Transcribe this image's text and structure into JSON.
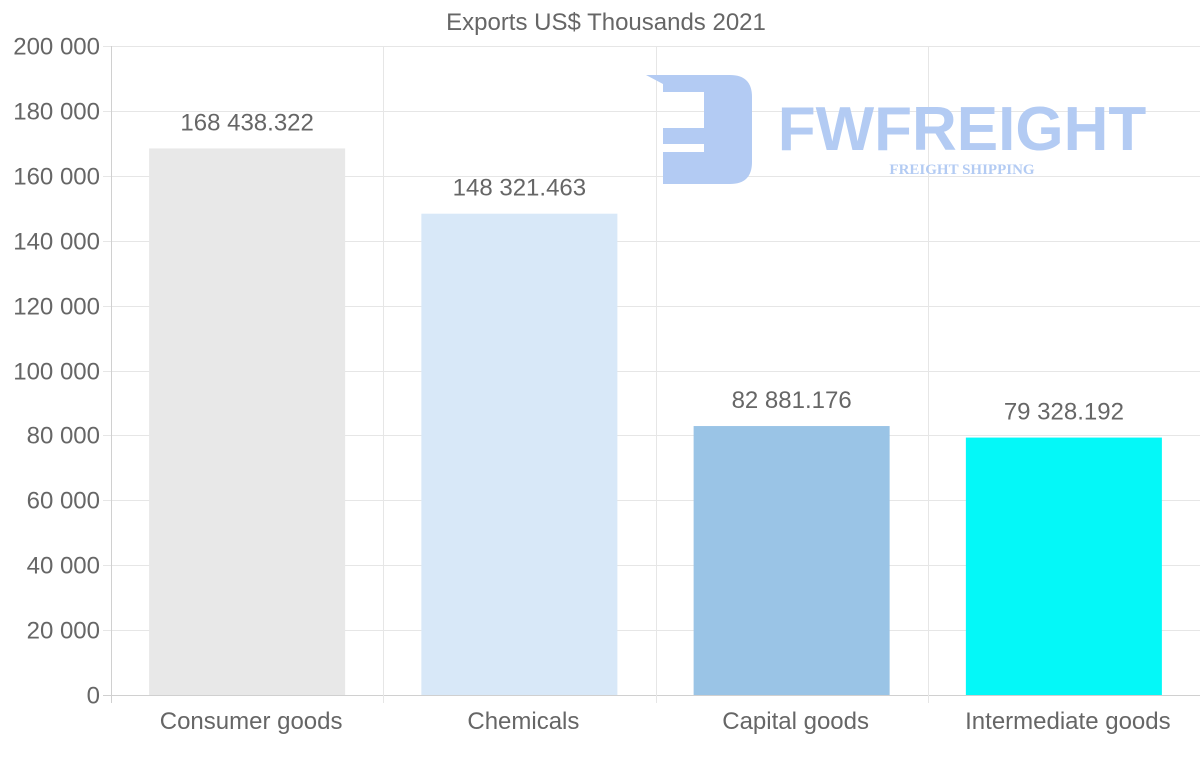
{
  "chart_data": {
    "type": "bar",
    "title": "Exports US$ Thousands 2021",
    "categories": [
      "Consumer goods",
      "Chemicals",
      "Capital goods",
      "Intermediate goods"
    ],
    "values": [
      168438.322,
      148321.463,
      82881.176,
      79328.192
    ],
    "value_labels": [
      "168 438.322",
      "148 321.463",
      "82 881.176",
      "79 328.192"
    ],
    "colors": [
      "#e8e8e8",
      "#d8e8f8",
      "#9ac4e6",
      "#04f8f8"
    ],
    "ylim": [
      0,
      200000
    ],
    "yticks": [
      0,
      20000,
      40000,
      60000,
      80000,
      100000,
      120000,
      140000,
      160000,
      180000,
      200000
    ],
    "ytick_labels": [
      "0",
      "20 000",
      "40 000",
      "60 000",
      "80 000",
      "100 000",
      "120 000",
      "140 000",
      "160 000",
      "180 000",
      "200 000"
    ],
    "xlabel": "",
    "ylabel": "",
    "grid": true,
    "legend": "none"
  },
  "watermark": {
    "brand": "FWFREIGHT",
    "tagline": "FREIGHT SHIPPING",
    "color": "#b3cbf3"
  }
}
